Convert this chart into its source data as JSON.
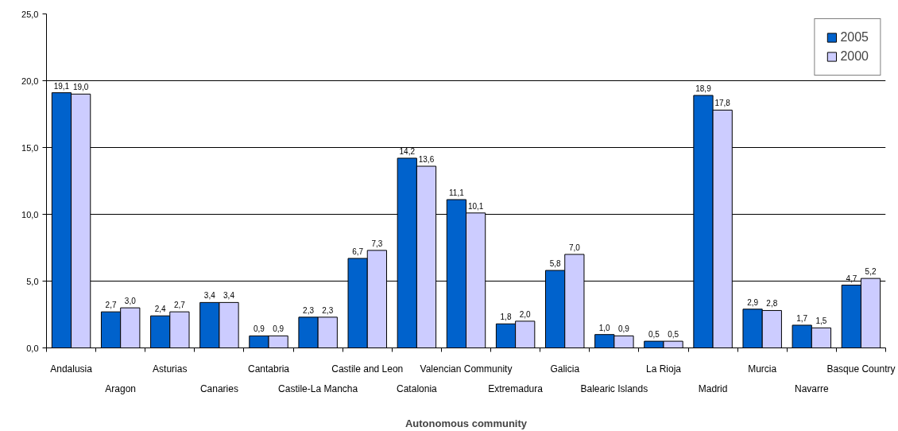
{
  "chart_data": {
    "type": "bar",
    "xlabel": "Autonomous community",
    "categories": [
      "Andalusia",
      "Aragon",
      "Asturias",
      "Canaries",
      "Cantabria",
      "Castile-La Mancha",
      "Castile and Leon",
      "Catalonia",
      "Valencian Community",
      "Extremadura",
      "Galicia",
      "Balearic Islands",
      "La Rioja",
      "Madrid",
      "Murcia",
      "Navarre",
      "Basque Country"
    ],
    "series": [
      {
        "name": "2005",
        "color": "#0062cc",
        "values": [
          19.1,
          2.7,
          2.4,
          3.4,
          0.9,
          2.3,
          6.7,
          14.2,
          11.1,
          1.8,
          5.8,
          1.0,
          0.5,
          18.9,
          2.9,
          1.7,
          4.7
        ],
        "value_labels": [
          "19,1",
          "2,7",
          "2,4",
          "3,4",
          "0,9",
          "2,3",
          "6,7",
          "14,2",
          "11,1",
          "1,8",
          "5,8",
          "1,0",
          "0,5",
          "18,9",
          "2,9",
          "1,7",
          "4,7"
        ]
      },
      {
        "name": "2000",
        "color": "#ccccff",
        "values": [
          19.0,
          3.0,
          2.7,
          3.4,
          0.9,
          2.3,
          7.3,
          13.6,
          10.1,
          2.0,
          7.0,
          0.9,
          0.5,
          17.8,
          2.8,
          1.5,
          5.2
        ],
        "value_labels": [
          "19,0",
          "3,0",
          "2,7",
          "3,4",
          "0,9",
          "2,3",
          "7,3",
          "13,6",
          "10,1",
          "2,0",
          "7,0",
          "0,9",
          "0,5",
          "17,8",
          "2,8",
          "1,5",
          "5,2"
        ]
      }
    ],
    "ylim": [
      0,
      25
    ],
    "yticks": [
      {
        "value": 0,
        "label": "0,0"
      },
      {
        "value": 5,
        "label": "5,0"
      },
      {
        "value": 10,
        "label": "10,0"
      },
      {
        "value": 15,
        "label": "15,0"
      },
      {
        "value": 20,
        "label": "20,0"
      },
      {
        "value": 25,
        "label": "25,0"
      }
    ],
    "grid": "y",
    "legend": "top right"
  }
}
